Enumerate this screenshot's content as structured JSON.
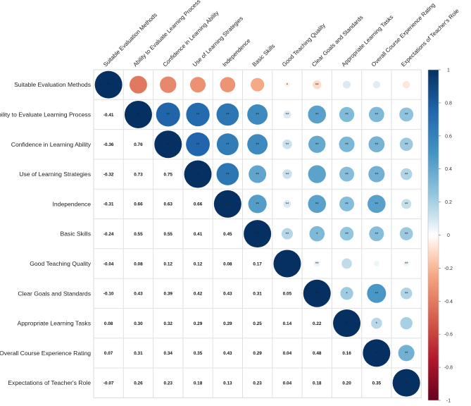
{
  "chart_data": {
    "type": "heatmap",
    "subtype": "correlation-matrix-mixed",
    "title": "",
    "variables": [
      "Suitable Evaluation Methods",
      "Ability to Evaluate Learning Process",
      "Confidence in Learning Ability",
      "Use of Learning Strategies",
      "Independence",
      "Basic Skills",
      "Good Teaching Quality",
      "Clear Goals and Standards",
      "Appropriate Learning Tasks",
      "Overall Course Experience Rating",
      "Expectations of Teacher's Role"
    ],
    "correlations": [
      [
        1.0,
        -0.41,
        -0.36,
        -0.32,
        -0.31,
        -0.24,
        -0.04,
        -0.1,
        0.08,
        0.07,
        -0.07
      ],
      [
        -0.41,
        1.0,
        0.76,
        0.73,
        0.66,
        0.55,
        0.08,
        0.43,
        0.3,
        0.31,
        0.26
      ],
      [
        -0.36,
        0.76,
        1.0,
        0.75,
        0.63,
        0.55,
        0.12,
        0.39,
        0.32,
        0.34,
        0.23
      ],
      [
        -0.32,
        0.73,
        0.75,
        1.0,
        0.66,
        0.41,
        0.12,
        0.42,
        0.29,
        0.35,
        0.18
      ],
      [
        -0.31,
        0.66,
        0.63,
        0.66,
        1.0,
        0.45,
        0.08,
        0.43,
        0.29,
        0.43,
        0.13
      ],
      [
        -0.24,
        0.55,
        0.55,
        0.41,
        0.45,
        1.0,
        0.17,
        0.31,
        0.25,
        0.29,
        0.23
      ],
      [
        -0.04,
        0.08,
        0.12,
        0.12,
        0.08,
        0.17,
        1.0,
        0.05,
        0.14,
        0.04,
        0.04
      ],
      [
        -0.1,
        0.43,
        0.39,
        0.42,
        0.43,
        0.31,
        0.05,
        1.0,
        0.22,
        0.48,
        0.18
      ],
      [
        0.08,
        0.3,
        0.32,
        0.29,
        0.29,
        0.25,
        0.14,
        0.22,
        1.0,
        0.16,
        0.2
      ],
      [
        0.07,
        0.31,
        0.34,
        0.35,
        0.43,
        0.29,
        0.04,
        0.48,
        0.16,
        1.0,
        0.35
      ],
      [
        -0.07,
        0.26,
        0.23,
        0.18,
        0.13,
        0.23,
        0.04,
        0.18,
        0.2,
        0.35,
        1.0
      ]
    ],
    "lower_labels": [
      [],
      [
        "-0.41"
      ],
      [
        "-0.36",
        "0.76"
      ],
      [
        "-0.32",
        "0.73",
        "0.75"
      ],
      [
        "-0.31",
        "0.66",
        "0.63",
        "0.66"
      ],
      [
        "-0.24",
        "0.55",
        "0.55",
        "0.41",
        "0.45"
      ],
      [
        "-0.04",
        "0.08",
        "0.12",
        "0.12",
        "0.08",
        "0.17"
      ],
      [
        "-0.10",
        "0.43",
        "0.39",
        "0.42",
        "0.43",
        "0.31",
        "0.05"
      ],
      [
        "0.08",
        "0.30",
        "0.32",
        "0.29",
        "0.29",
        "0.25",
        "0.14",
        "0.22"
      ],
      [
        "0.07",
        "0.31",
        "0.34",
        "0.35",
        "0.43",
        "0.29",
        "0.04",
        "0.48",
        "0.16"
      ],
      [
        "-0.07",
        "0.26",
        "0.23",
        "0.18",
        "0.13",
        "0.23",
        "0.04",
        "0.18",
        "0.20",
        "0.35"
      ]
    ],
    "significance": [
      [
        "**",
        "",
        "",
        "",
        "",
        "",
        "*",
        "**",
        "",
        "",
        ""
      ],
      [
        "",
        "**",
        "**",
        "**",
        "**",
        "**",
        "**",
        "**",
        "**",
        "**",
        "**"
      ],
      [
        "",
        "",
        "**",
        "**",
        "**",
        "**",
        "**",
        "**",
        "**",
        "**",
        "**"
      ],
      [
        "",
        "",
        "",
        "**",
        "**",
        "**",
        "**",
        "",
        "**",
        "**",
        "**"
      ],
      [
        "",
        "",
        "",
        "",
        "**",
        "**",
        "**",
        "**",
        "**",
        "**",
        "**"
      ],
      [
        "",
        "",
        "",
        "",
        "",
        "**",
        "**",
        "*",
        "**",
        "**",
        "**"
      ],
      [
        "",
        "",
        "",
        "",
        "",
        "",
        "**",
        "**",
        "",
        "",
        "**"
      ],
      [
        "",
        "",
        "",
        "",
        "",
        "",
        "",
        "**",
        "*",
        "**",
        "**"
      ],
      [
        "",
        "",
        "",
        "",
        "",
        "",
        "",
        "",
        "**",
        "*",
        ""
      ],
      [
        "",
        "",
        "",
        "",
        "",
        "",
        "",
        "",
        "",
        "**",
        "**"
      ],
      [
        "",
        "",
        "",
        "",
        "",
        "",
        "",
        "",
        "",
        "",
        "**"
      ]
    ],
    "upper": "circle",
    "lower": "number",
    "legend": {
      "position": "right",
      "range": [
        -1,
        1
      ],
      "ticks": [
        "1",
        "0.8",
        "0.6",
        "0.4",
        "0.2",
        "0",
        "-0.2",
        "-0.4",
        "-0.6",
        "-0.8",
        "-1"
      ],
      "colors": {
        "negative": "#67001f",
        "zero": "#ffffff",
        "positive": "#053061"
      }
    },
    "grid": true
  }
}
